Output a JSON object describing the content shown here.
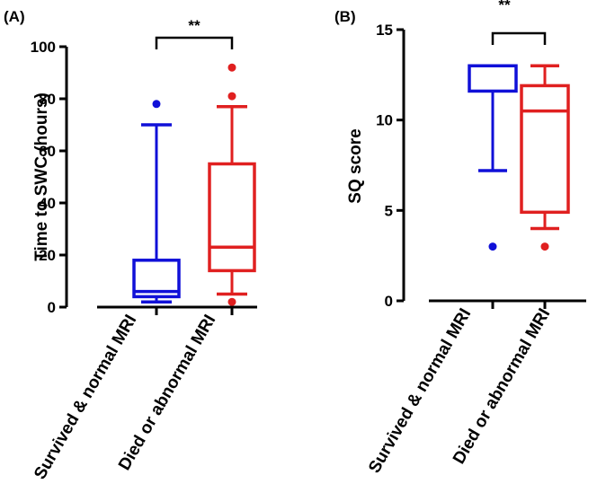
{
  "chart_data": [
    {
      "type": "box",
      "panel_label": "(A)",
      "title": "",
      "xlabel": "",
      "ylabel": "Time to SWC (hours)",
      "ylim": [
        0,
        100
      ],
      "yticks": [
        0,
        20,
        40,
        60,
        80,
        100
      ],
      "categories": [
        "Survived & normal MRI",
        "Died or abnormal MRI"
      ],
      "series": [
        {
          "name": "Survived & normal MRI",
          "color": "#1010d8",
          "min": 2,
          "q1": 4,
          "median": 6,
          "q3": 18,
          "max": 70,
          "outliers": [
            78
          ]
        },
        {
          "name": "Died or abnormal MRI",
          "color": "#e02020",
          "min": 5,
          "q1": 14,
          "median": 23,
          "q3": 55,
          "max": 77,
          "outliers": [
            2,
            81,
            92
          ]
        }
      ],
      "significance": {
        "label": "**",
        "between": [
          0,
          1
        ],
        "y": 103
      }
    },
    {
      "type": "box",
      "panel_label": "(B)",
      "title": "",
      "xlabel": "",
      "ylabel": "SQ score",
      "ylim": [
        0,
        15
      ],
      "yticks": [
        0,
        5,
        10,
        15
      ],
      "categories": [
        "Survived & normal MRI",
        "Died or abnormal MRI"
      ],
      "series": [
        {
          "name": "Survived & normal MRI",
          "color": "#1010d8",
          "min": 7.2,
          "q1": 11.6,
          "median": 13,
          "q3": 13,
          "max": 13,
          "outliers": [
            3
          ]
        },
        {
          "name": "Died or abnormal MRI",
          "color": "#e02020",
          "min": 4,
          "q1": 4.9,
          "median": 10.5,
          "q3": 11.9,
          "max": 13,
          "outliers": [
            3
          ]
        }
      ],
      "significance": {
        "label": "**",
        "between": [
          0,
          1
        ],
        "y": 14.8
      }
    }
  ]
}
